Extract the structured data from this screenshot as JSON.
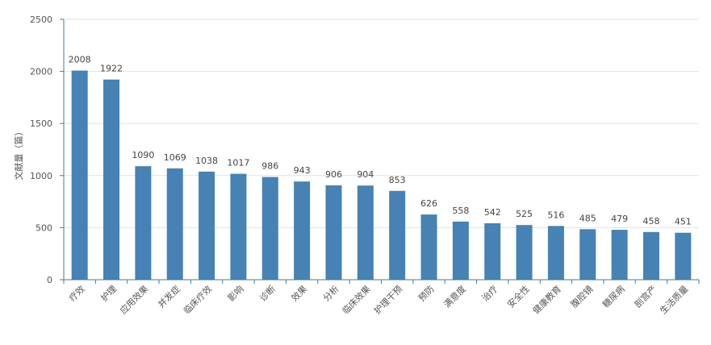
{
  "chart_data": {
    "type": "bar",
    "ylabel": "文献量（篇）",
    "ylim": [
      0,
      2500
    ],
    "yticks": [
      0,
      500,
      1000,
      1500,
      2000,
      2500
    ],
    "grid": true,
    "bar_color": "#4682b4",
    "categories": [
      "疗效",
      "护理",
      "应用效果",
      "并发症",
      "临床疗效",
      "影响",
      "诊断",
      "效果",
      "分析",
      "临床效果",
      "护理干预",
      "预防",
      "满意度",
      "治疗",
      "安全性",
      "健康教育",
      "腹腔镜",
      "糖尿病",
      "剖宫产",
      "生活质量"
    ],
    "values": [
      2008,
      1922,
      1090,
      1069,
      1038,
      1017,
      986,
      943,
      906,
      904,
      853,
      626,
      558,
      542,
      525,
      516,
      485,
      479,
      458,
      451
    ]
  }
}
